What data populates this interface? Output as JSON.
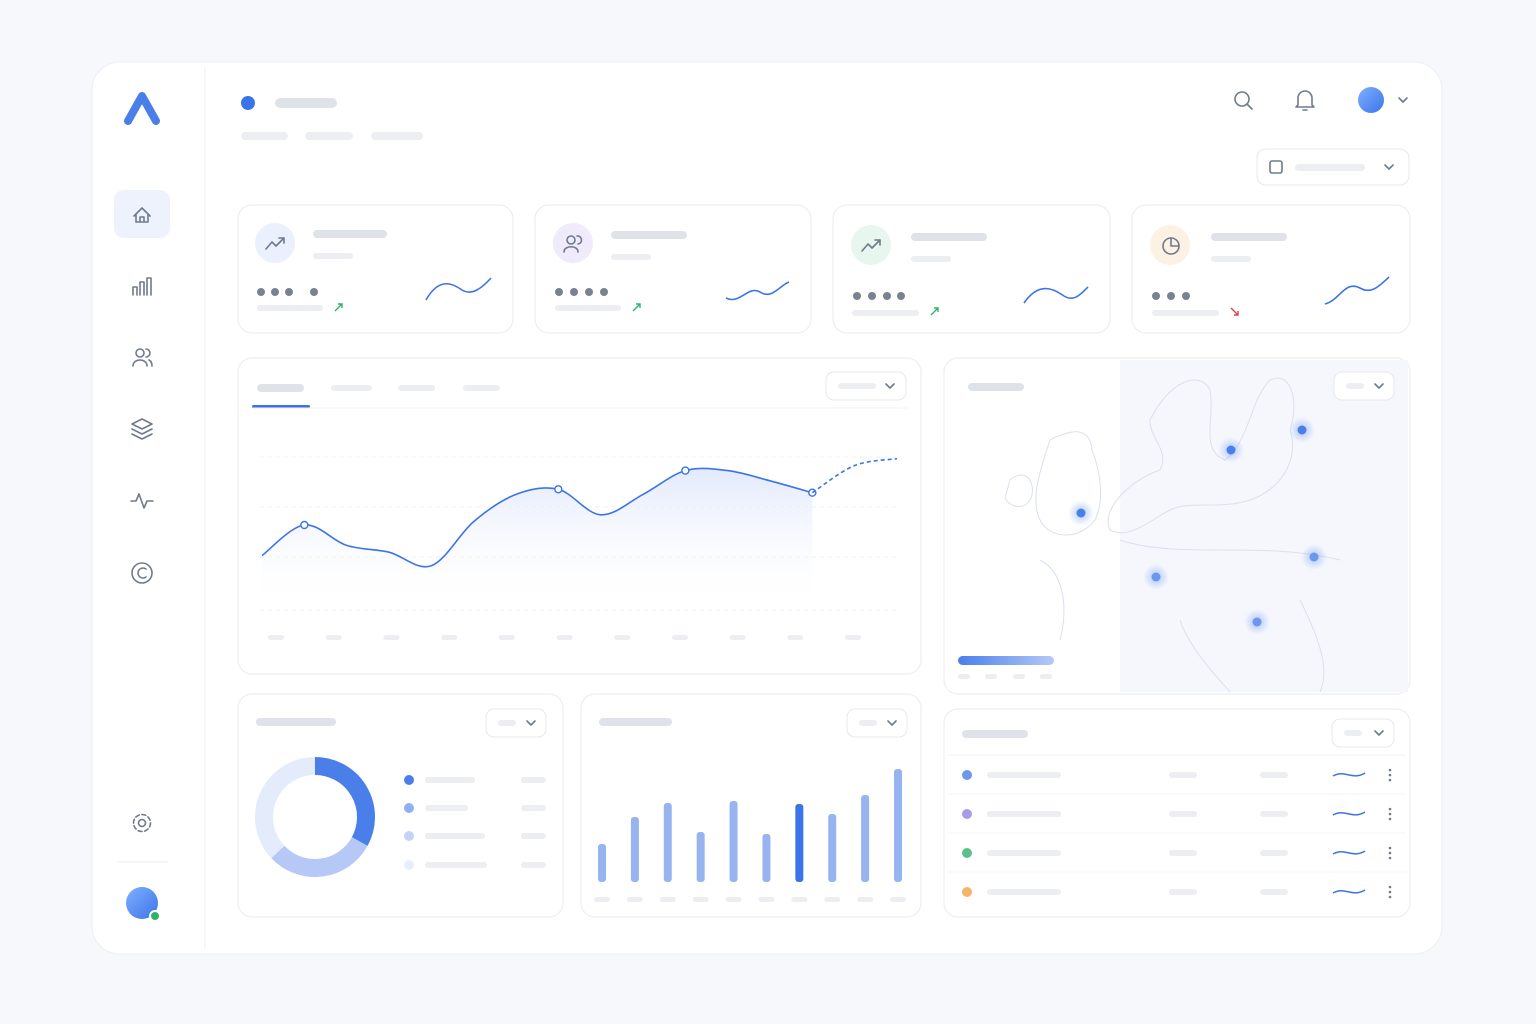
{
  "chart_data": [
    {
      "type": "line",
      "ylim": [
        0,
        100
      ],
      "series": [
        {
          "color": "#3b74e8",
          "values": [
            32,
            50,
            38,
            34,
            26,
            52,
            68,
            71,
            56,
            68,
            82,
            82,
            76,
            69,
            null,
            null
          ]
        },
        {
          "color": "#3b74e8",
          "values": [
            null,
            null,
            null,
            null,
            null,
            null,
            null,
            null,
            null,
            null,
            null,
            null,
            null,
            69,
            85,
            89
          ]
        }
      ]
    },
    {
      "type": "donut",
      "values": [
        33,
        30,
        37
      ],
      "colors": [
        "#4a7fea",
        "#b6c9f6",
        "#e4ebfb"
      ]
    },
    {
      "type": "bar",
      "ylim": [
        0,
        120
      ],
      "values": [
        38,
        65,
        79,
        50,
        81,
        48,
        78,
        68,
        87,
        113
      ],
      "color": "#97b4f1",
      "highlight_color": "#3b74e8",
      "highlight": 6
    }
  ]
}
